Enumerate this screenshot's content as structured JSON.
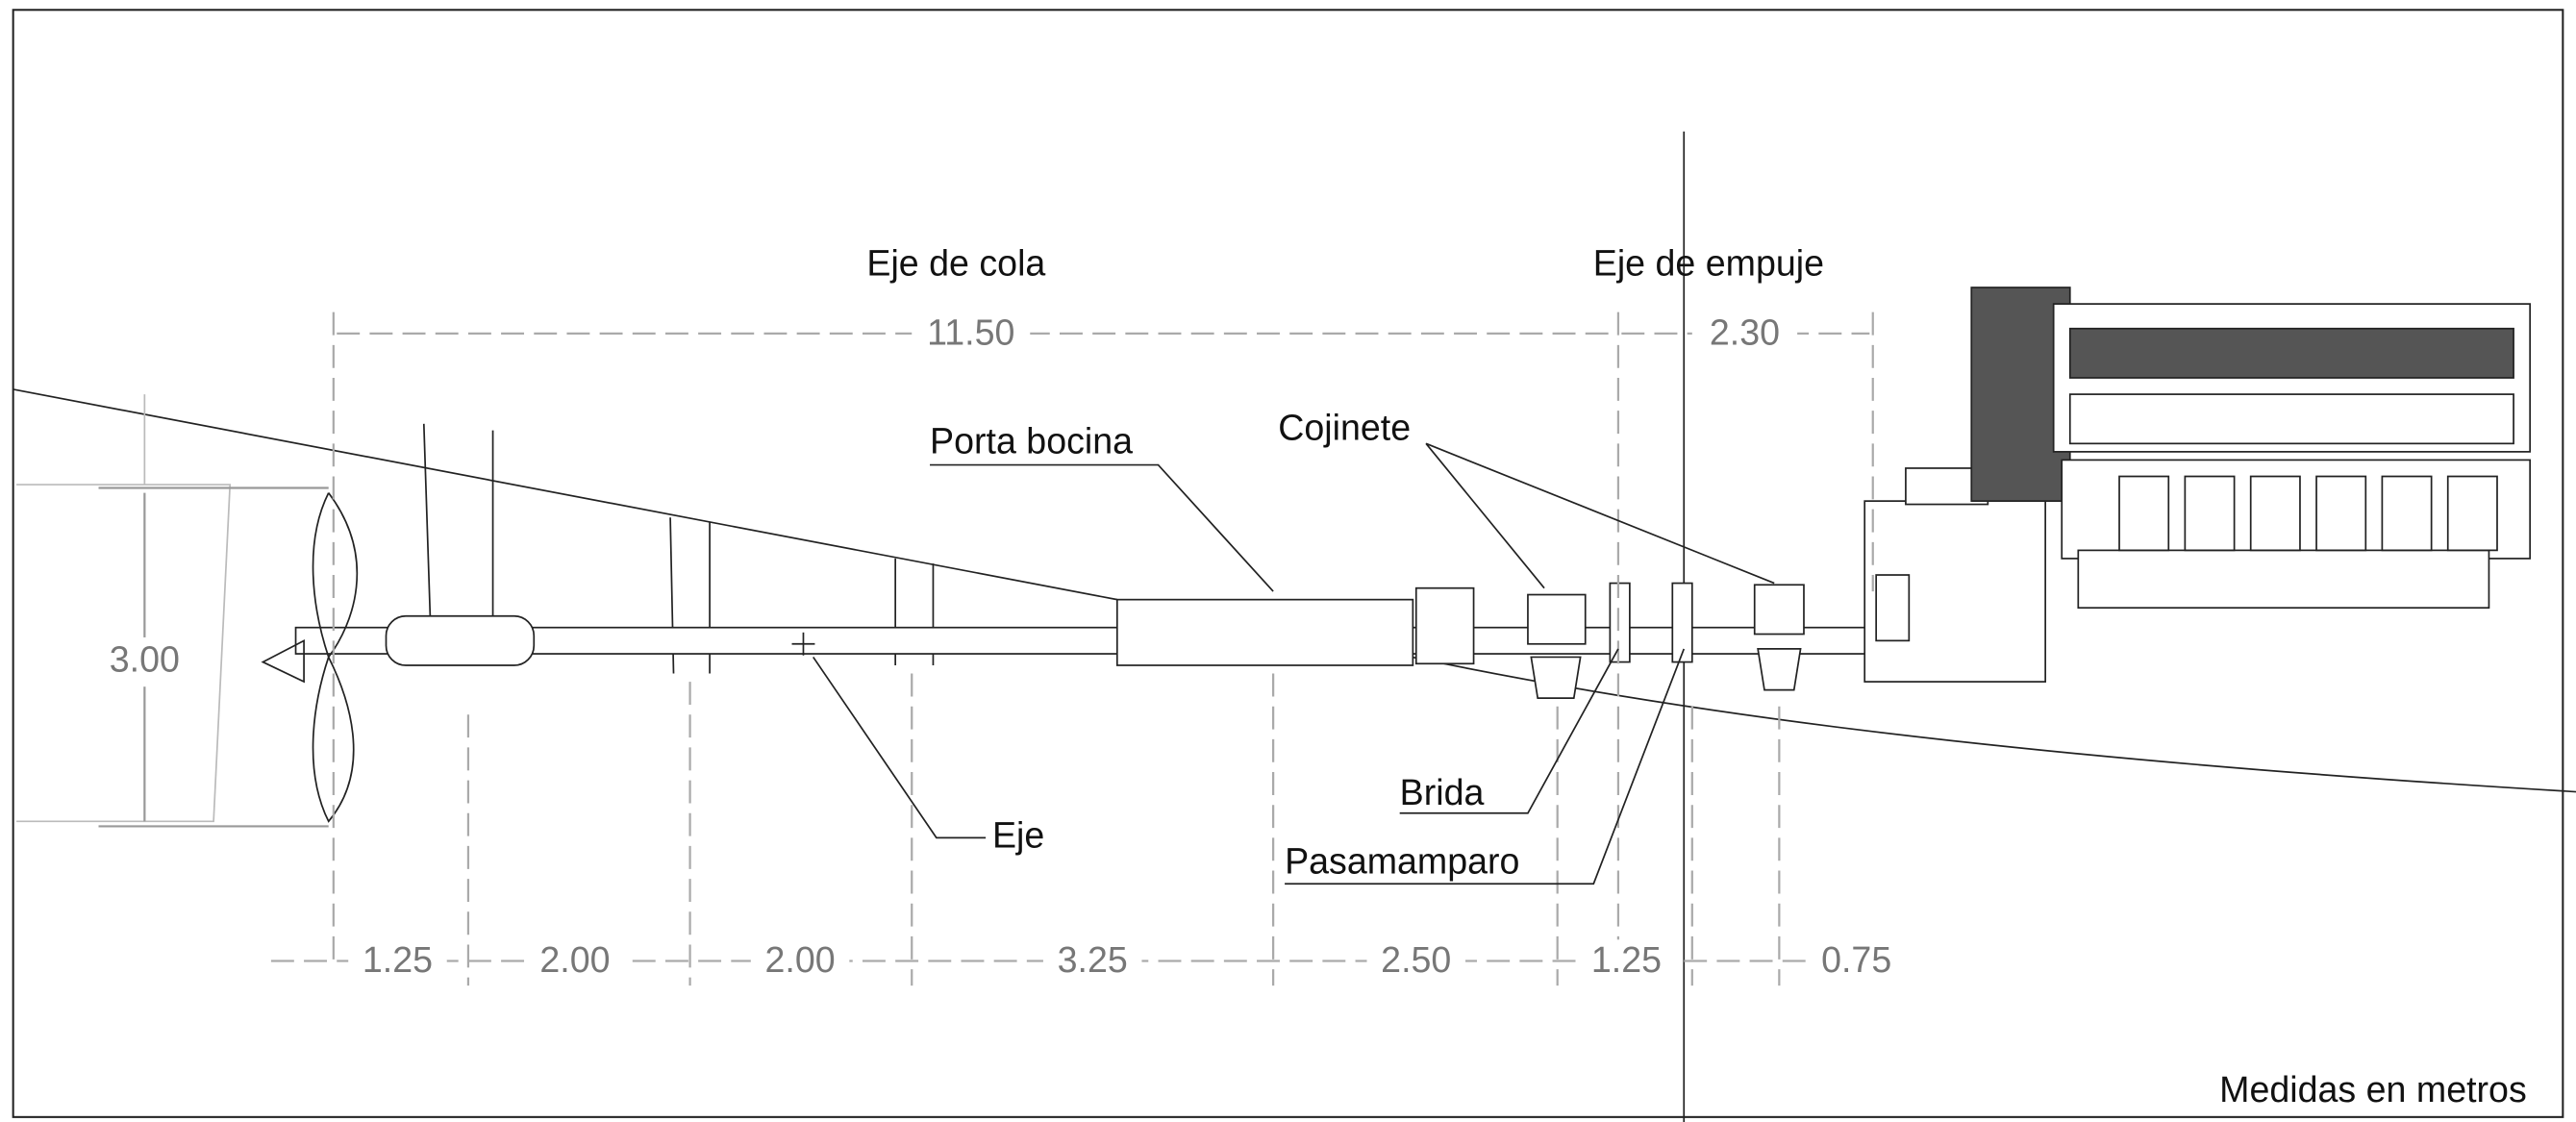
{
  "labels": {
    "tail_shaft": "Eje de cola",
    "thrust_shaft": "Eje de empuje",
    "stern_tube": "Porta bocina",
    "bearing": "Cojinete",
    "flange": "Brida",
    "bulkhead_seal": "Pasamamparo",
    "shaft": "Eje",
    "units_note": "Medidas en metros"
  },
  "top_dimensions": [
    "11.50",
    "2.30"
  ],
  "propeller_dimension": "3.00",
  "bottom_dimensions": [
    "1.25",
    "2.00",
    "2.00",
    "3.25",
    "2.50",
    "1.25",
    "0.75"
  ]
}
